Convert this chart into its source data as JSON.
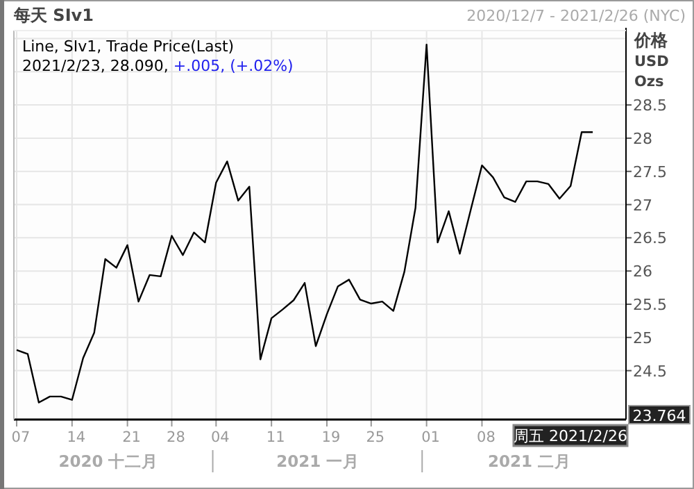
{
  "chart_data": {
    "type": "line",
    "title": "每天 SIv1",
    "subtitle": "2020/12/7 - 2021/2/26 (NYC)",
    "ylabel": "价格\nUSD\nOzs",
    "categories": [
      "07",
      null,
      null,
      null,
      null,
      "14",
      null,
      null,
      null,
      null,
      "21",
      null,
      null,
      null,
      "28",
      null,
      null,
      null,
      "04",
      null,
      null,
      null,
      null,
      "11",
      null,
      null,
      null,
      null,
      "19",
      null,
      null,
      null,
      "25",
      null,
      null,
      null,
      null,
      "01",
      null,
      null,
      null,
      null,
      "08",
      null,
      null,
      null,
      null,
      null,
      null,
      null,
      null,
      null,
      null,
      null,
      null,
      null
    ],
    "series": [
      {
        "color": "#000000",
        "values": [
          24.81,
          24.75,
          24.02,
          24.11,
          24.11,
          24.06,
          24.69,
          25.07,
          26.18,
          26.05,
          26.39,
          25.54,
          25.94,
          25.92,
          26.53,
          26.24,
          26.58,
          26.43,
          27.33,
          27.65,
          27.06,
          27.27,
          24.67,
          25.29,
          25.42,
          25.56,
          25.82,
          24.87,
          25.35,
          25.77,
          25.87,
          25.57,
          25.51,
          25.54,
          25.4,
          25.99,
          26.95,
          29.41,
          26.43,
          26.9,
          26.26,
          26.93,
          27.59,
          27.41,
          27.11,
          27.04,
          27.35,
          27.35,
          27.31,
          27.09,
          27.28,
          28.09,
          28.09,
          null,
          null,
          null
        ]
      }
    ],
    "ylim": [
      23.764,
      29.62
    ],
    "yticks": [
      {
        "value": 23.764,
        "label": "23.764"
      },
      24.5,
      25,
      25.5,
      26,
      26.5,
      27,
      27.5,
      28,
      28.5,
      {
        "value": 29,
        "label": null
      },
      {
        "value": 29.5,
        "label": null
      }
    ],
    "grid": true,
    "marker": "none",
    "line_style": "solid",
    "annotations": [
      "Line, SIv1, Trade Price(Last)",
      "2021/2/23, 28.090,",
      "+.005, (+.02%)",
      "2020 十二月",
      "2021 一月",
      "2021 二月",
      "周五 2021/2/26"
    ]
  }
}
